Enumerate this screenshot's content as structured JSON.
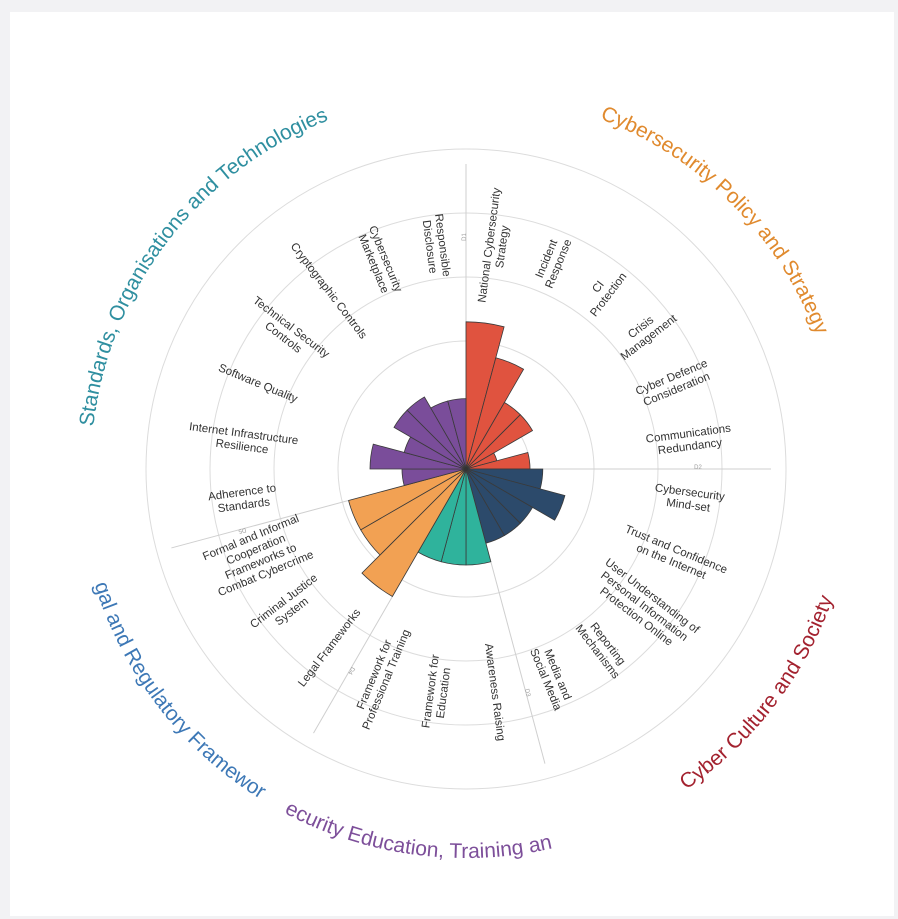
{
  "chart_data": {
    "type": "polar-bar",
    "scale_max": 5,
    "dimensions": [
      {
        "id": "D1",
        "title": "Cybersecurity Policy and Strategy",
        "color": "#e0533f",
        "title_color": "#e08a2e",
        "boundary_tick": "D1",
        "categories": [
          {
            "label": "National Cybersecurity\nStrategy",
            "value": 2.3
          },
          {
            "label": "Incident\nResponse",
            "value": 1.8
          },
          {
            "label": "CI\nProtection",
            "value": 1.2
          },
          {
            "label": "Crisis\nManagement",
            "value": 1.2
          },
          {
            "label": "Cyber Defence\nConsideration",
            "value": 0.5
          },
          {
            "label": "Communications\nRedundancy",
            "value": 1.0
          }
        ]
      },
      {
        "id": "D2",
        "title": "Cyber Culture and Society",
        "color": "#2c4a6b",
        "title_color": "#a3222f",
        "boundary_tick": "D2",
        "categories": [
          {
            "label": "Cybersecurity\nMind-set",
            "value": 1.2
          },
          {
            "label": "Trust and Confidence\non the Internet",
            "value": 1.6
          },
          {
            "label": "User Understanding of\nPersonal Information\nProtection Online",
            "value": 1.2
          },
          {
            "label": "Reporting\nMechanisms",
            "value": 1.2
          },
          {
            "label": "Media and\nSocial Media",
            "value": 1.2
          }
        ]
      },
      {
        "id": "D3",
        "title": "Cybersecurity Education, Training and Skills",
        "color": "#2fb39c",
        "title_color": "#7d4f9a",
        "boundary_tick": "D3",
        "categories": [
          {
            "label": "Awareness Raising",
            "value": 1.5
          },
          {
            "label": "Framework for\nEducation",
            "value": 1.5
          },
          {
            "label": "Framework for\nProfessional Training",
            "value": 1.5
          }
        ]
      },
      {
        "id": "D4",
        "title": "Legal and Regulatory Frameworks",
        "color": "#f2a153",
        "title_color": "#3d78b6",
        "boundary_tick": "D4",
        "categories": [
          {
            "label": "Legal Frameworks",
            "value": 2.3
          },
          {
            "label": "Criminal Justice\nSystem",
            "value": 1.9
          },
          {
            "label": "Formal and Informal\nCooperation\nFrameworks to\nCombat Cybercrime",
            "value": 1.9
          }
        ]
      },
      {
        "id": "D5",
        "title": "Standards, Organisations and Technologies",
        "color": "#7a4d9a",
        "title_color": "#2f8fa0",
        "boundary_tick": "D5",
        "categories": [
          {
            "label": "Adherence to\nStandards",
            "value": 1.0
          },
          {
            "label": "Internet Infrastructure\nResilience",
            "value": 1.5
          },
          {
            "label": "Software Quality",
            "value": 1.0
          },
          {
            "label": "Technical Security\nControls",
            "value": 1.3
          },
          {
            "label": "Cryptographic Controls",
            "value": 1.3
          },
          {
            "label": "Cybersecurity\nMarketplace",
            "value": 1.1
          },
          {
            "label": "Responsible\nDisclosure",
            "value": 1.1
          }
        ]
      }
    ],
    "ring_labels": [
      "1",
      "2",
      "3",
      "4",
      "5"
    ],
    "grid": true
  }
}
